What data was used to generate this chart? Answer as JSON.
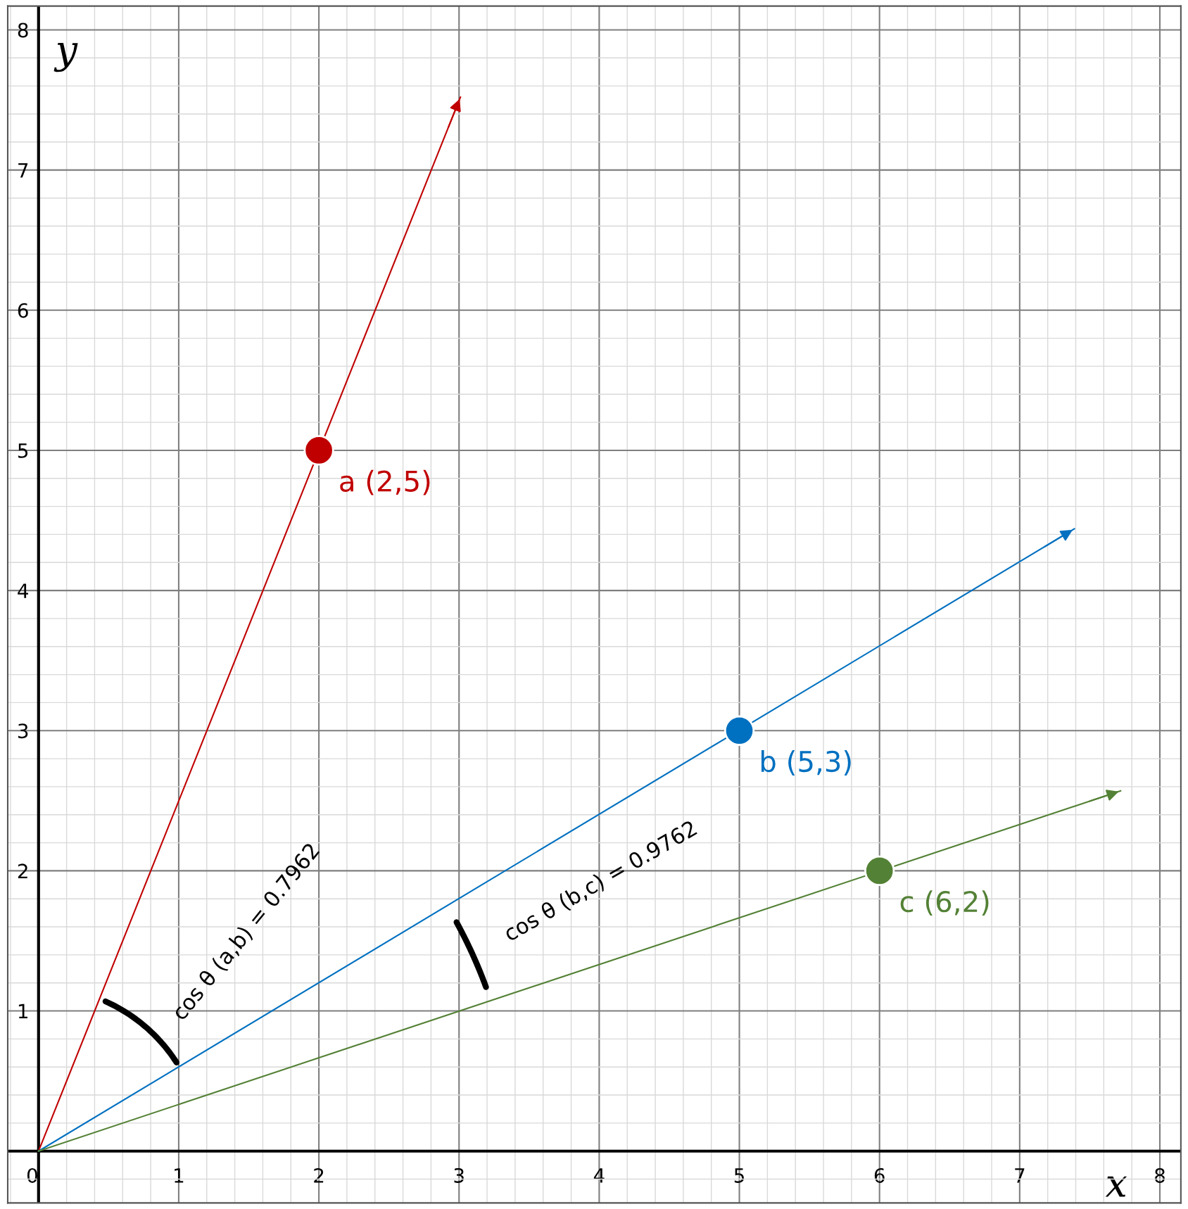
{
  "chart_data": {
    "type": "scatter",
    "xlabel": "x",
    "ylabel": "y",
    "xlim": [
      -0.22,
      8.15
    ],
    "ylim": [
      -0.37,
      8.17
    ],
    "xticks": [
      0,
      1,
      2,
      3,
      4,
      5,
      6,
      7,
      8
    ],
    "yticks": [
      1,
      2,
      3,
      4,
      5,
      6,
      7,
      8
    ],
    "grid": true,
    "series": [
      {
        "type": "line",
        "marker": "none",
        "color": "#c00000",
        "x": [
          0,
          3.01
        ],
        "values": [
          0,
          7.52
        ]
      },
      {
        "type": "line",
        "marker": "none",
        "color": "#0070c0",
        "x": [
          0,
          7.39
        ],
        "values": [
          0,
          4.44
        ]
      },
      {
        "type": "line",
        "marker": "none",
        "color": "#538135",
        "x": [
          0,
          7.72
        ],
        "values": [
          0,
          2.57
        ]
      },
      {
        "marker": "circle",
        "name": "a (2,5)",
        "color": "#c00000",
        "x": [
          2
        ],
        "values": [
          5
        ]
      },
      {
        "marker": "circle",
        "name": "b (5,3)",
        "color": "#0070c0",
        "x": [
          5
        ],
        "values": [
          3
        ]
      },
      {
        "marker": "circle",
        "name": "c (6,2)",
        "color": "#538135",
        "x": [
          6
        ],
        "values": [
          2
        ]
      }
    ],
    "annotations": [
      "cos θ (a,b) = 0.7962",
      "cos θ (b,c) = 0.9762"
    ]
  }
}
